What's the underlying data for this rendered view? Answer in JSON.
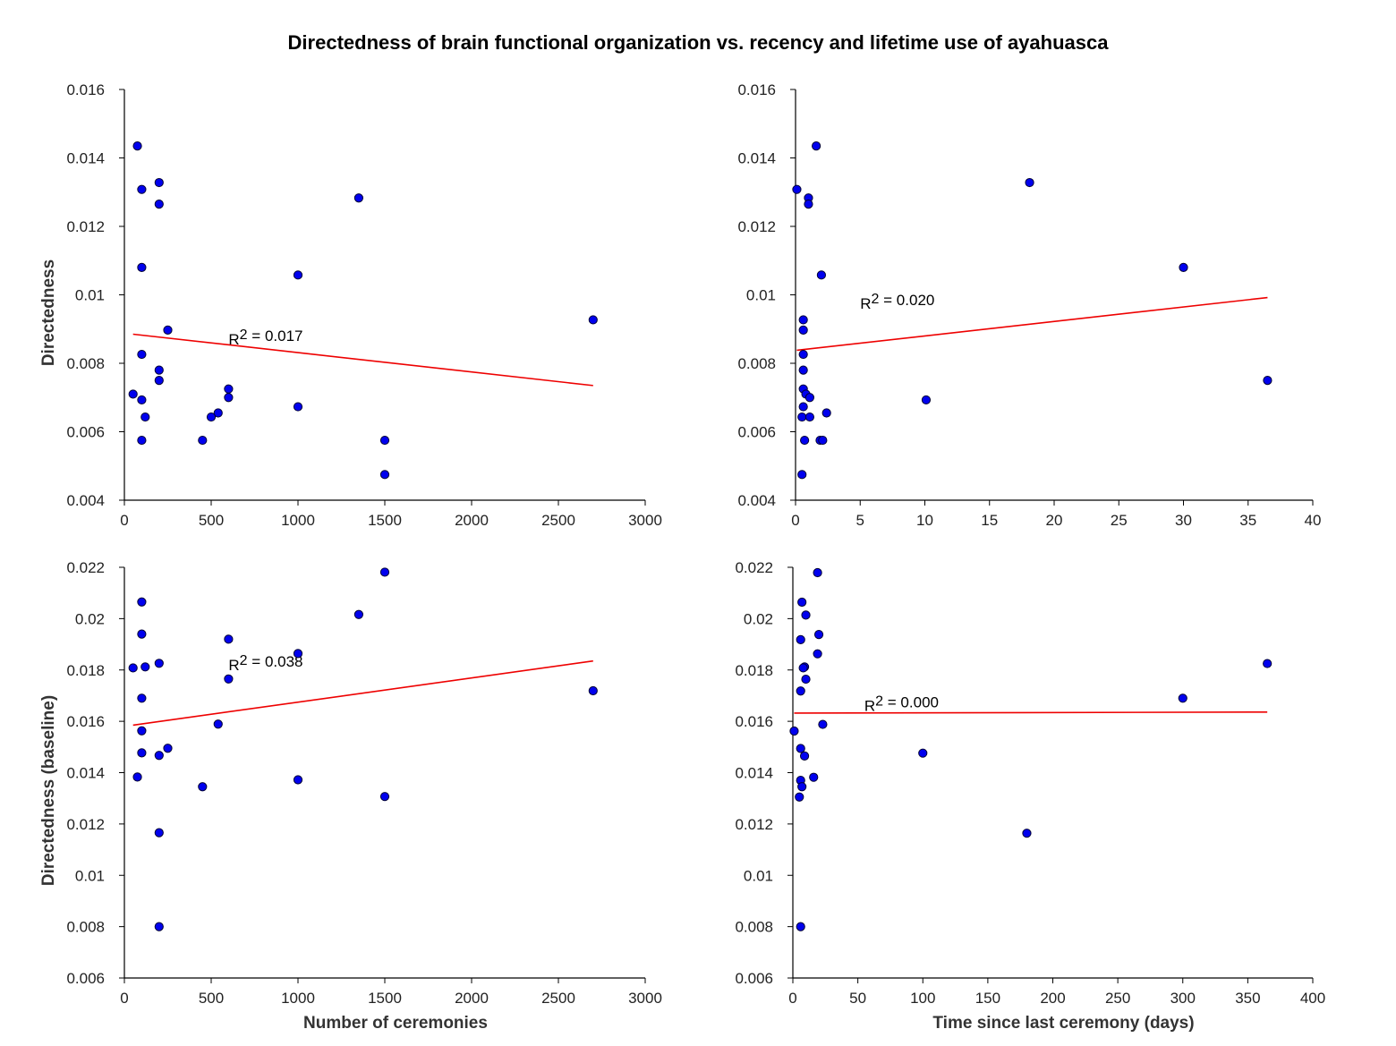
{
  "figure_title": "Directedness of brain functional organization vs. recency and lifetime use of ayahuasca",
  "colors": {
    "points": "#0000ee",
    "point_edge": "#000033",
    "fit_line": "#ee0000",
    "axis": "#000000"
  },
  "chart_data": [
    {
      "type": "scatter",
      "xlabel": "",
      "ylabel": "Directedness",
      "xlim": [
        0,
        3000
      ],
      "ylim": [
        0.004,
        0.016
      ],
      "xticks": [
        "0",
        "500",
        "1000",
        "1500",
        "2000",
        "2500",
        "3000"
      ],
      "yticks": [
        "0.004",
        "0.006",
        "0.008",
        "0.01",
        "0.012",
        "0.014",
        "0.016"
      ],
      "annotation": {
        "prefix": "R",
        "sup": "2",
        "text": " = 0.017"
      },
      "fit_line": {
        "x": [
          50,
          2700
        ],
        "y": [
          0.00885,
          0.00735
        ]
      },
      "points": [
        {
          "x": 75,
          "y": 0.01435
        },
        {
          "x": 100,
          "y": 0.01308
        },
        {
          "x": 200,
          "y": 0.01328
        },
        {
          "x": 200,
          "y": 0.01265
        },
        {
          "x": 1350,
          "y": 0.01283
        },
        {
          "x": 100,
          "y": 0.0108
        },
        {
          "x": 1000,
          "y": 0.01058
        },
        {
          "x": 2700,
          "y": 0.00927
        },
        {
          "x": 250,
          "y": 0.00897
        },
        {
          "x": 100,
          "y": 0.00826
        },
        {
          "x": 200,
          "y": 0.0078
        },
        {
          "x": 200,
          "y": 0.0075
        },
        {
          "x": 600,
          "y": 0.00725
        },
        {
          "x": 50,
          "y": 0.0071
        },
        {
          "x": 600,
          "y": 0.007
        },
        {
          "x": 100,
          "y": 0.00693
        },
        {
          "x": 1000,
          "y": 0.00673
        },
        {
          "x": 540,
          "y": 0.00655
        },
        {
          "x": 500,
          "y": 0.00643
        },
        {
          "x": 120,
          "y": 0.00643
        },
        {
          "x": 100,
          "y": 0.00575
        },
        {
          "x": 450,
          "y": 0.00575
        },
        {
          "x": 1500,
          "y": 0.00575
        },
        {
          "x": 1500,
          "y": 0.00475
        }
      ]
    },
    {
      "type": "scatter",
      "xlabel": "",
      "ylabel": "",
      "xlim": [
        0,
        40
      ],
      "ylim": [
        0.004,
        0.016
      ],
      "xticks": [
        "0",
        "5",
        "10",
        "15",
        "20",
        "25",
        "30",
        "35",
        "40"
      ],
      "yticks": [
        "0.004",
        "0.006",
        "0.008",
        "0.01",
        "0.012",
        "0.014",
        "0.016"
      ],
      "annotation": {
        "prefix": "R",
        "sup": "2",
        "text": " = 0.020"
      },
      "fit_line": {
        "x": [
          0.1,
          36.5
        ],
        "y": [
          0.00838,
          0.00992
        ]
      },
      "points": [
        {
          "x": 1.6,
          "y": 0.01435
        },
        {
          "x": 0.1,
          "y": 0.01308
        },
        {
          "x": 18.1,
          "y": 0.01328
        },
        {
          "x": 1.0,
          "y": 0.01283
        },
        {
          "x": 1.0,
          "y": 0.01265
        },
        {
          "x": 30.0,
          "y": 0.0108
        },
        {
          "x": 2.0,
          "y": 0.01058
        },
        {
          "x": 0.6,
          "y": 0.00927
        },
        {
          "x": 0.6,
          "y": 0.00897
        },
        {
          "x": 0.6,
          "y": 0.00826
        },
        {
          "x": 0.6,
          "y": 0.0078
        },
        {
          "x": 36.5,
          "y": 0.0075
        },
        {
          "x": 0.6,
          "y": 0.00725
        },
        {
          "x": 0.8,
          "y": 0.0071
        },
        {
          "x": 1.1,
          "y": 0.007
        },
        {
          "x": 10.1,
          "y": 0.00693
        },
        {
          "x": 0.6,
          "y": 0.00673
        },
        {
          "x": 2.4,
          "y": 0.00655
        },
        {
          "x": 0.5,
          "y": 0.00643
        },
        {
          "x": 1.1,
          "y": 0.00643
        },
        {
          "x": 0.7,
          "y": 0.00575
        },
        {
          "x": 1.9,
          "y": 0.00575
        },
        {
          "x": 2.1,
          "y": 0.00575
        },
        {
          "x": 0.5,
          "y": 0.00475
        }
      ]
    },
    {
      "type": "scatter",
      "xlabel": "Number of ceremonies",
      "ylabel": "Directedness (baseline)",
      "xlim": [
        0,
        3000
      ],
      "ylim": [
        0.006,
        0.022
      ],
      "xticks": [
        "0",
        "500",
        "1000",
        "1500",
        "2000",
        "2500",
        "3000"
      ],
      "yticks": [
        "0.006",
        "0.008",
        "0.01",
        "0.012",
        "0.014",
        "0.016",
        "0.018",
        "0.02",
        "0.022"
      ],
      "annotation": {
        "prefix": "R",
        "sup": "2",
        "text": " = 0.038"
      },
      "fit_line": {
        "x": [
          50,
          2700
        ],
        "y": [
          0.01585,
          0.01835
        ]
      },
      "points": [
        {
          "x": 1500,
          "y": 0.02181
        },
        {
          "x": 100,
          "y": 0.02065
        },
        {
          "x": 1350,
          "y": 0.02016
        },
        {
          "x": 100,
          "y": 0.0194
        },
        {
          "x": 600,
          "y": 0.0192
        },
        {
          "x": 1000,
          "y": 0.01864
        },
        {
          "x": 200,
          "y": 0.01826
        },
        {
          "x": 120,
          "y": 0.01812
        },
        {
          "x": 50,
          "y": 0.01808
        },
        {
          "x": 600,
          "y": 0.01765
        },
        {
          "x": 2700,
          "y": 0.01719
        },
        {
          "x": 100,
          "y": 0.0169
        },
        {
          "x": 540,
          "y": 0.01589
        },
        {
          "x": 100,
          "y": 0.01563
        },
        {
          "x": 250,
          "y": 0.01495
        },
        {
          "x": 100,
          "y": 0.01477
        },
        {
          "x": 200,
          "y": 0.01467
        },
        {
          "x": 75,
          "y": 0.01383
        },
        {
          "x": 1000,
          "y": 0.01372
        },
        {
          "x": 450,
          "y": 0.01345
        },
        {
          "x": 1500,
          "y": 0.01307
        },
        {
          "x": 200,
          "y": 0.01166
        },
        {
          "x": 200,
          "y": 0.008
        }
      ]
    },
    {
      "type": "scatter",
      "xlabel": "Time since last ceremony (days)",
      "ylabel": "",
      "xlim": [
        0,
        400
      ],
      "ylim": [
        0.006,
        0.022
      ],
      "xticks": [
        "0",
        "50",
        "100",
        "150",
        "200",
        "250",
        "300",
        "350",
        "400"
      ],
      "yticks": [
        "0.006",
        "0.008",
        "0.01",
        "0.012",
        "0.014",
        "0.016",
        "0.018",
        "0.02",
        "0.022"
      ],
      "annotation": {
        "prefix": "R",
        "sup": "2",
        "text": " = 0.000"
      },
      "fit_line": {
        "x": [
          1,
          365
        ],
        "y": [
          0.01632,
          0.01636
        ]
      },
      "points": [
        {
          "x": 19,
          "y": 0.02179
        },
        {
          "x": 7,
          "y": 0.02064
        },
        {
          "x": 10,
          "y": 0.02014
        },
        {
          "x": 20,
          "y": 0.01938
        },
        {
          "x": 6,
          "y": 0.01918
        },
        {
          "x": 19,
          "y": 0.01863
        },
        {
          "x": 365,
          "y": 0.01825
        },
        {
          "x": 9,
          "y": 0.01812
        },
        {
          "x": 8,
          "y": 0.01808
        },
        {
          "x": 10,
          "y": 0.01764
        },
        {
          "x": 6,
          "y": 0.01718
        },
        {
          "x": 300,
          "y": 0.0169
        },
        {
          "x": 23,
          "y": 0.01588
        },
        {
          "x": 1,
          "y": 0.01562
        },
        {
          "x": 6,
          "y": 0.01494
        },
        {
          "x": 100,
          "y": 0.01476
        },
        {
          "x": 9,
          "y": 0.01465
        },
        {
          "x": 16,
          "y": 0.01382
        },
        {
          "x": 6,
          "y": 0.0137
        },
        {
          "x": 7,
          "y": 0.01345
        },
        {
          "x": 5,
          "y": 0.01305
        },
        {
          "x": 180,
          "y": 0.01164
        },
        {
          "x": 6,
          "y": 0.008
        }
      ]
    }
  ]
}
